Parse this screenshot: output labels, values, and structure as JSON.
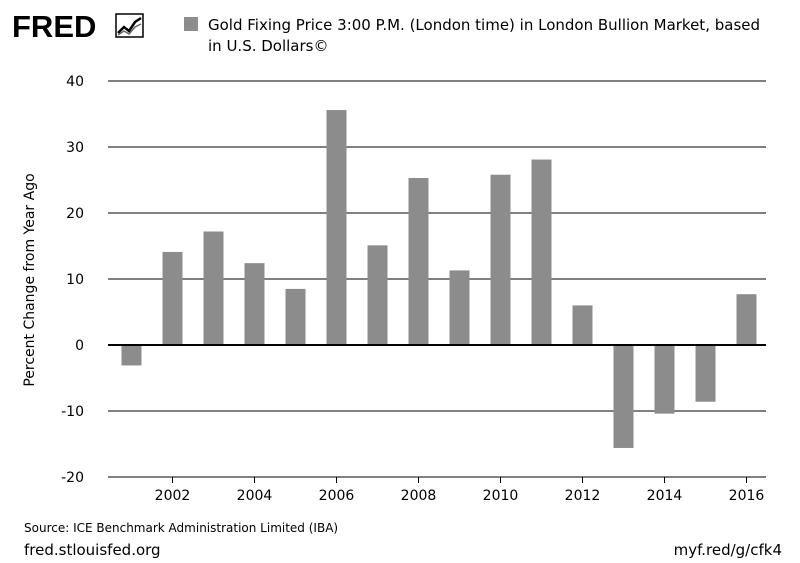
{
  "brand": {
    "logo_text": "FRED"
  },
  "colors": {
    "bar": "#8c8c8c",
    "axis": "#000000",
    "grid": "#000000",
    "background": "#ffffff"
  },
  "chart_data": {
    "type": "bar",
    "title": "Gold Fixing Price 3:00 P.M. (London time) in London Bullion Market, based in U.S. Dollars©",
    "legend": {
      "label_line1": "Gold Fixing Price 3:00 P.M. (London time) in London Bullion Market, based",
      "label_line2": "in U.S. Dollars©",
      "placement": "top"
    },
    "ylabel": "Percent Change from Year Ago",
    "xlabel": "",
    "ylim": [
      -20,
      40
    ],
    "yticks": [
      -20,
      -10,
      0,
      10,
      20,
      30,
      40
    ],
    "xticks": [
      2002,
      2004,
      2006,
      2008,
      2010,
      2012,
      2014,
      2016
    ],
    "grid": true,
    "categories": [
      2001,
      2002,
      2003,
      2004,
      2005,
      2006,
      2007,
      2008,
      2009,
      2010,
      2011,
      2012,
      2013,
      2014,
      2015,
      2016
    ],
    "values": [
      -3.1,
      14.1,
      17.2,
      12.4,
      8.5,
      35.6,
      15.1,
      25.3,
      11.3,
      25.8,
      28.1,
      6.0,
      -15.6,
      -10.4,
      -8.6,
      7.7
    ]
  },
  "footer": {
    "source": "Source: ICE Benchmark Administration Limited (IBA)",
    "site": "fred.stlouisfed.org",
    "short_url": "myf.red/g/cfk4"
  }
}
